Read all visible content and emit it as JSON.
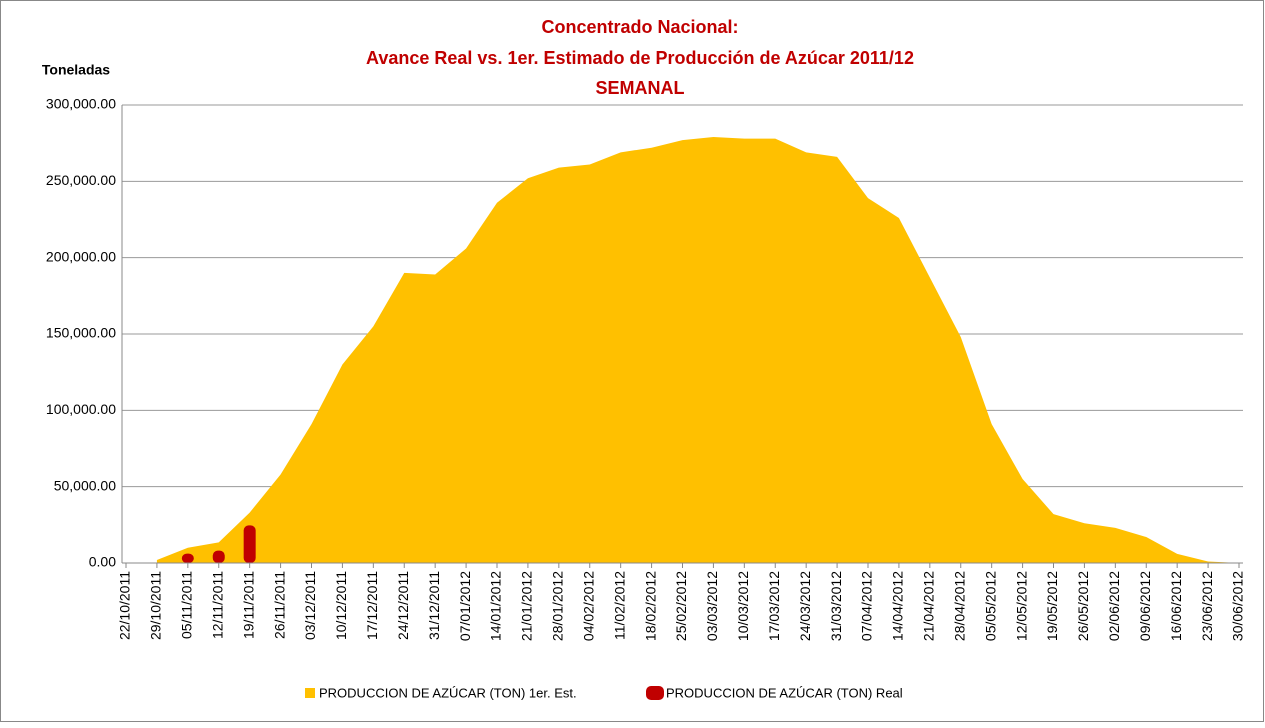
{
  "chart_data": {
    "type": "area",
    "title": [
      "Concentrado Nacional:",
      "Avance Real vs. 1er. Estimado de Producción de Azúcar 2011/12",
      "SEMANAL"
    ],
    "ylabel": "Toneladas",
    "categories": [
      "22/10/2011",
      "29/10/2011",
      "05/11/2011",
      "12/11/2011",
      "19/11/2011",
      "26/11/2011",
      "03/12/2011",
      "10/12/2011",
      "17/12/2011",
      "24/12/2011",
      "31/12/2011",
      "07/01/2012",
      "14/01/2012",
      "21/01/2012",
      "28/01/2012",
      "04/02/2012",
      "11/02/2012",
      "18/02/2012",
      "25/02/2012",
      "03/03/2012",
      "10/03/2012",
      "17/03/2012",
      "24/03/2012",
      "31/03/2012",
      "07/04/2012",
      "14/04/2012",
      "21/04/2012",
      "28/04/2012",
      "05/05/2012",
      "12/05/2012",
      "19/05/2012",
      "26/05/2012",
      "02/06/2012",
      "09/06/2012",
      "16/06/2012",
      "23/06/2012",
      "30/06/2012"
    ],
    "series": [
      {
        "name": "PRODUCCION DE AZÚCAR (TON) 1er. Est.",
        "type": "area",
        "color": "#ffc000",
        "values": [
          null,
          2000,
          10000,
          13500,
          33000,
          58000,
          91000,
          130000,
          155000,
          190000,
          189000,
          206000,
          236000,
          252000,
          259000,
          261000,
          269000,
          272000,
          277000,
          279000,
          278000,
          278000,
          269000,
          266000,
          239000,
          226000,
          187000,
          148000,
          91000,
          55000,
          32000,
          26000,
          23000,
          17000,
          6000,
          1000,
          0
        ]
      },
      {
        "name": "PRODUCCION DE AZÚCAR (TON) Real",
        "type": "bar",
        "color": "#c00000",
        "values": [
          null,
          null,
          3500,
          5500,
          22000,
          null,
          null,
          null,
          null,
          null,
          null,
          null,
          null,
          null,
          null,
          null,
          null,
          null,
          null,
          null,
          null,
          null,
          null,
          null,
          null,
          null,
          null,
          null,
          null,
          null,
          null,
          null,
          null,
          null,
          null,
          null,
          null
        ]
      }
    ],
    "ylim": [
      0,
      300000
    ],
    "yticks": [
      {
        "value": 0,
        "label": "0.00"
      },
      {
        "value": 50000,
        "label": "50,000.00"
      },
      {
        "value": 100000,
        "label": "100,000.00"
      },
      {
        "value": 150000,
        "label": "150,000.00"
      },
      {
        "value": 200000,
        "label": "200,000.00"
      },
      {
        "value": 250000,
        "label": "250,000.00"
      },
      {
        "value": 300000,
        "label": "300,000.00"
      }
    ],
    "grid": true,
    "legend": "bottom"
  }
}
